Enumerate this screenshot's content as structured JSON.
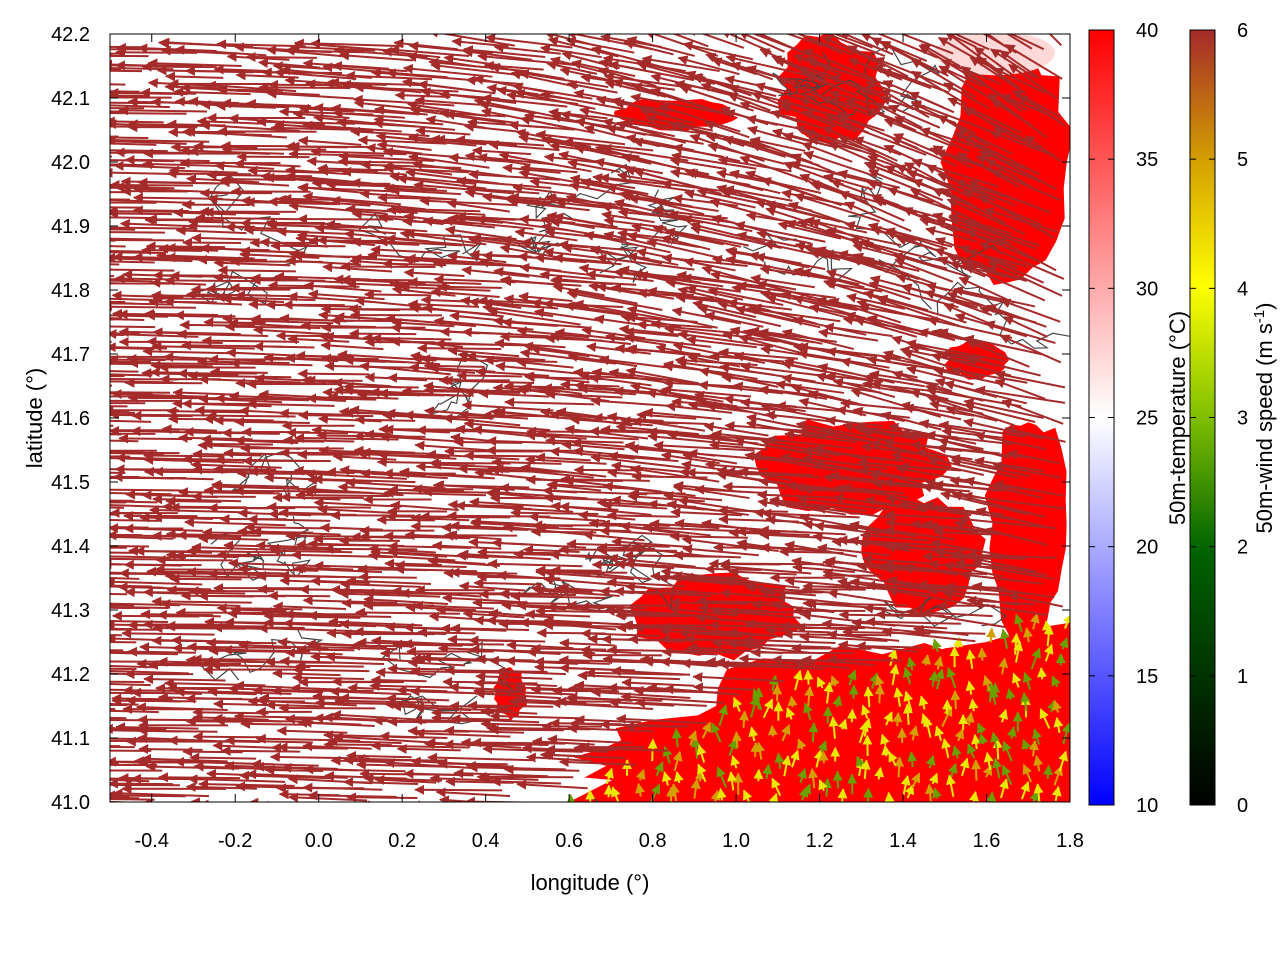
{
  "chart_data": {
    "type": "heatmap",
    "title": "",
    "xlabel": "longitude (°)",
    "ylabel": "latitude (°)",
    "xlim": [
      -0.5,
      1.8
    ],
    "ylim": [
      41.0,
      42.2
    ],
    "xticks": [
      "-0.4",
      "-0.2",
      "0.0",
      "0.2",
      "0.4",
      "0.6",
      "0.8",
      "1.0",
      "1.2",
      "1.4",
      "1.6",
      "1.8"
    ],
    "yticks": [
      "41.0",
      "41.1",
      "41.2",
      "41.3",
      "41.4",
      "41.5",
      "41.6",
      "41.7",
      "41.8",
      "41.9",
      "42.0",
      "42.1",
      "42.2"
    ],
    "xtick_values": [
      -0.4,
      -0.2,
      0.0,
      0.2,
      0.4,
      0.6,
      0.8,
      1.0,
      1.2,
      1.4,
      1.6,
      1.8
    ],
    "ytick_values": [
      41.0,
      41.1,
      41.2,
      41.3,
      41.4,
      41.5,
      41.6,
      41.7,
      41.8,
      41.9,
      42.0,
      42.1,
      42.2
    ],
    "grid": false,
    "colorbars": [
      {
        "label": "50m-temperature (°C)",
        "range": [
          10,
          40
        ],
        "ticks": [
          "10",
          "15",
          "20",
          "25",
          "30",
          "35",
          "40"
        ],
        "tick_values": [
          10,
          15,
          20,
          25,
          30,
          35,
          40
        ],
        "colors": [
          "#0000ff",
          "#ffffff",
          "#ff0000"
        ]
      },
      {
        "label": "50m-wind speed (m s",
        "label_sup": "-1",
        "label_end": ")",
        "range": [
          0,
          6
        ],
        "ticks": [
          "0",
          "1",
          "2",
          "3",
          "4",
          "5",
          "6"
        ],
        "tick_values": [
          0,
          1,
          2,
          3,
          4,
          5,
          6
        ],
        "colors": [
          "#000000",
          "#006400",
          "#7fbf00",
          "#ffff00",
          "#d4a000",
          "#a52a2a"
        ]
      }
    ],
    "warm_regions": [
      {
        "lon": [
          0.6,
          1.8
        ],
        "lat": [
          41.0,
          41.14
        ],
        "temp": 40
      },
      {
        "lon": [
          0.9,
          1.8
        ],
        "lat": [
          41.0,
          41.25
        ],
        "temp": 40
      },
      {
        "lon": [
          0.75,
          1.15
        ],
        "lat": [
          41.22,
          41.36
        ],
        "temp": 40
      },
      {
        "lon": [
          1.05,
          1.5
        ],
        "lat": [
          41.45,
          41.6
        ],
        "temp": 40
      },
      {
        "lon": [
          1.3,
          1.6
        ],
        "lat": [
          41.3,
          41.48
        ],
        "temp": 40
      },
      {
        "lon": [
          1.6,
          1.8
        ],
        "lat": [
          41.25,
          41.62
        ],
        "temp": 40
      },
      {
        "lon": [
          0.42,
          0.5
        ],
        "lat": [
          41.13,
          41.21
        ],
        "temp": 40
      },
      {
        "lon": [
          1.5,
          1.8
        ],
        "lat": [
          41.8,
          42.2
        ],
        "temp": 40
      },
      {
        "lon": [
          1.1,
          1.35
        ],
        "lat": [
          42.03,
          42.2
        ],
        "temp": 40
      },
      {
        "lon": [
          0.7,
          1.0
        ],
        "lat": [
          42.05,
          42.1
        ],
        "temp": 40
      },
      {
        "lon": [
          1.5,
          1.65
        ],
        "lat": [
          41.66,
          41.72
        ],
        "temp": 40
      }
    ],
    "coastline_lon": [
      0.6,
      0.75,
      0.9,
      1.0,
      1.1,
      1.2,
      1.3,
      1.4,
      1.5,
      1.6,
      1.7,
      1.8
    ],
    "coastline_lat": [
      41.0,
      41.05,
      41.1,
      41.15,
      41.18,
      41.2,
      41.2,
      41.22,
      41.24,
      41.25,
      41.27,
      41.28
    ],
    "wind_field": {
      "inland_direction": "westward",
      "inland_speed": 6,
      "coastal_speed_range": [
        2,
        4
      ],
      "coastal_direction": "northward"
    }
  }
}
